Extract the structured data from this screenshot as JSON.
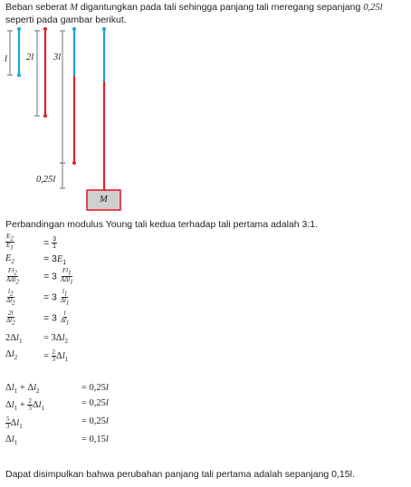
{
  "problem": {
    "line1": "Beban seberat M digantungkan pada tali sehingga panjang tali meregang sepanjang 0,25l",
    "line1_parts": [
      "Beban seberat ",
      "M",
      " digantungkan pada tali sehingga panjang tali meregang sepanjang ",
      "0,25l"
    ],
    "line2": "seperti pada gambar berikut."
  },
  "figure": {
    "labels": [
      "l",
      "2l",
      "3l",
      "0,25l",
      "M"
    ],
    "colors": {
      "blue": "#1ca3dc",
      "red": "#e0222b",
      "gray": "#888888",
      "box_fill": "#cfcfcf"
    }
  },
  "ratio_text": "Perbandingan modulus Young tali kedua terhadap tali pertama adalah 3:1.",
  "steps": [
    {
      "lhs": "E₂/E₁",
      "rhs": "= 3/1"
    },
    {
      "lhs": "E₂",
      "rhs": "= 3E₁"
    },
    {
      "lhs": "Fl₂/AΔl₂",
      "rhs": "= 3 Fl₁/AΔl₁"
    },
    {
      "lhs": "l₂/Δl₂",
      "rhs": "= 3 l₁/Δl₁"
    },
    {
      "lhs": "2l/Δl₂",
      "rhs": "= 3 l/Δl₁"
    },
    {
      "lhs": "2Δl₁",
      "rhs": "= 3Δl₂"
    },
    {
      "lhs": "Δl₂",
      "rhs": "= 2/3 Δl₁"
    }
  ],
  "steps2": [
    {
      "lhs": "Δl₁ + Δl₂",
      "rhs": "= 0,25l"
    },
    {
      "lhs": "Δl₁ + 2/3 Δl₁",
      "rhs": "= 0,25l"
    },
    {
      "lhs": "5/3 Δl₁",
      "rhs": "= 0,25l"
    },
    {
      "lhs": "Δl₁",
      "rhs": "= 0,15l"
    }
  ],
  "conclusion": "Dapat disimpulkan bahwa perubahan panjang tali pertama adalah sepanjang 0,15l."
}
